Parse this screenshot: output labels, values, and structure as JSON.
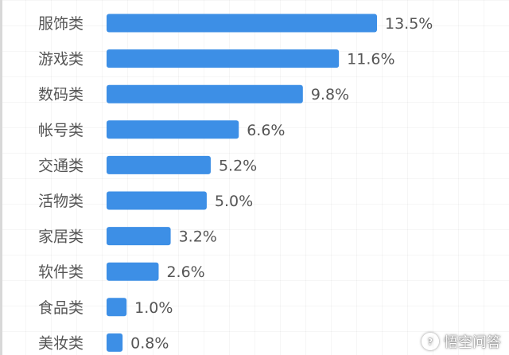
{
  "chart_data": {
    "type": "bar",
    "orientation": "horizontal",
    "categories": [
      "服饰类",
      "游戏类",
      "数码类",
      "帐号类",
      "交通类",
      "活物类",
      "家居类",
      "软件类",
      "食品类",
      "美妆类"
    ],
    "values": [
      13.5,
      11.6,
      9.8,
      6.6,
      5.2,
      5.0,
      3.2,
      2.6,
      1.0,
      0.8
    ],
    "value_labels": [
      "13.5%",
      "11.6%",
      "9.8%",
      "6.6%",
      "5.2%",
      "5.0%",
      "3.2%",
      "2.6%",
      "1.0%",
      "0.8%"
    ],
    "unit": "%",
    "title": "",
    "xlabel": "",
    "ylabel": "",
    "xlim": [
      0,
      13.5
    ],
    "grid": true,
    "bar_color": "#3d8fe6",
    "text_color": "#555555"
  },
  "watermark": {
    "icon": "speech-bubble-icon",
    "text": "悟空问答"
  }
}
